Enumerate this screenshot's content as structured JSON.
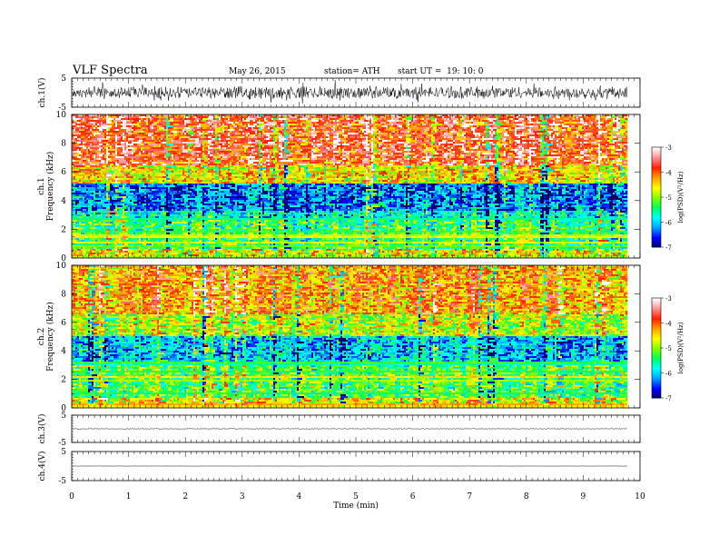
{
  "header": {
    "title": "VLF Spectra",
    "date": "May 26, 2015",
    "station": "station= ATH",
    "start": "start UT =  19: 10: 0"
  },
  "chart_data": [
    {
      "type": "line",
      "panel": "ch1-waveform",
      "ylabel": "ch.1(V)",
      "ylim": [
        -5,
        5
      ],
      "yticks": [
        "5",
        "-5"
      ],
      "xlim": [
        0,
        10
      ],
      "signal": "noisy broadband waveform, mostly within about ±2 V with spikes to about ±3 V"
    },
    {
      "type": "heatmap",
      "panel": "ch1-spectrogram",
      "ylabel": "ch.1\nFrequency  (kHz)",
      "ylim": [
        0,
        10
      ],
      "yticks": [
        "0",
        "2",
        "4",
        "6",
        "8",
        "10"
      ],
      "xlim": [
        0,
        9.8
      ],
      "colorbar": {
        "label": "log(PSD)(V²/Hz)",
        "range": [
          -7,
          -3
        ],
        "ticks": [
          "-3",
          "-4",
          "-5",
          "-6",
          "-7"
        ]
      },
      "description": "High frequencies (6-10 kHz) mostly red/orange (about -4); 3.5-5 kHz band dark blue (about -6.5); below 3 kHz green/cyan with persistent horizontal lines"
    },
    {
      "type": "heatmap",
      "panel": "ch2-spectrogram",
      "ylabel": "ch.2\nFrequency  (kHz)",
      "ylim": [
        0,
        10
      ],
      "yticks": [
        "0",
        "2",
        "4",
        "6",
        "8",
        "10"
      ],
      "xlim": [
        0,
        9.8
      ],
      "colorbar": {
        "label": "log(PSD)(V²/Hz)",
        "range": [
          -7,
          -3
        ],
        "ticks": [
          "-3",
          "-4",
          "-5",
          "-6",
          "-7"
        ]
      },
      "description": "Mixed yellow/red above 5 kHz, blue band near 3-5 kHz, green/cyan below 3 kHz"
    },
    {
      "type": "line",
      "panel": "ch3-waveform",
      "ylabel": "ch.3(V)",
      "ylim": [
        -5,
        5
      ],
      "yticks": [
        "5",
        "-5"
      ],
      "xlim": [
        0,
        10
      ],
      "signal": "nearly flat trace around 0 V"
    },
    {
      "type": "line",
      "panel": "ch4-waveform",
      "ylabel": "ch.4(V)",
      "ylim": [
        -5,
        5
      ],
      "yticks": [
        "5",
        "-5"
      ],
      "xlim": [
        0,
        10
      ],
      "signal": "flat trace around 0 V"
    }
  ],
  "xaxis": {
    "label": "Time  (min)",
    "ticks": [
      "0",
      "1",
      "2",
      "3",
      "4",
      "5",
      "6",
      "7",
      "8",
      "9",
      "10"
    ]
  },
  "colors": {
    "colormap": [
      "#000060",
      "#0000ff",
      "#00a0ff",
      "#00ffff",
      "#00ff60",
      "#80ff00",
      "#ffff00",
      "#ffa000",
      "#ff2000",
      "#ff9090",
      "#ffffff"
    ]
  }
}
